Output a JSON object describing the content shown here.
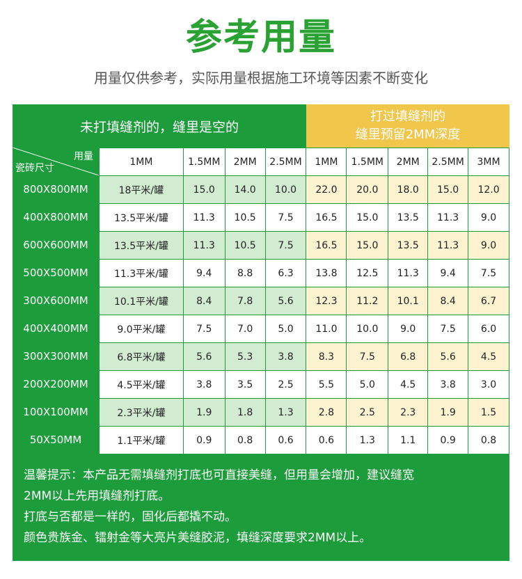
{
  "title": "参考用量",
  "subtitle": "用量仅供参考，实际用量根据施工环境等因素不断变化",
  "header": {
    "left": "未打填缝剂的，缝里是空的",
    "right_line1": "打过填缝剂的",
    "right_line2": "缝里预留2MM深度",
    "corner_top": "用量",
    "corner_bottom": "瓷砖尺寸"
  },
  "columns": [
    "1MM",
    "1.5MM",
    "2MM",
    "2.5MM",
    "1MM",
    "1.5MM",
    "2MM",
    "2.5MM",
    "3MM"
  ],
  "rows": [
    {
      "size": "800X800MM",
      "cover": "18平米/罐",
      "values": [
        "15.0",
        "14.0",
        "10.0",
        "22.0",
        "20.0",
        "18.0",
        "15.0",
        "12.0"
      ]
    },
    {
      "size": "400X800MM",
      "cover": "13.5平米/罐",
      "values": [
        "11.3",
        "10.5",
        "7.5",
        "16.5",
        "15.0",
        "13.5",
        "11.3",
        "9.0"
      ]
    },
    {
      "size": "600X600MM",
      "cover": "13.5平米/罐",
      "values": [
        "11.3",
        "10.5",
        "7.5",
        "16.5",
        "15.0",
        "13.5",
        "11.3",
        "9.0"
      ]
    },
    {
      "size": "500X500MM",
      "cover": "11.3平米/罐",
      "values": [
        "9.4",
        "8.8",
        "6.3",
        "13.8",
        "12.5",
        "11.3",
        "9.4",
        "7.5"
      ]
    },
    {
      "size": "300X600MM",
      "cover": "10.1平米/罐",
      "values": [
        "8.4",
        "7.8",
        "5.6",
        "12.3",
        "11.2",
        "10.1",
        "8.4",
        "6.7"
      ]
    },
    {
      "size": "400X400MM",
      "cover": "9.0平米/罐",
      "values": [
        "7.5",
        "7.0",
        "5.0",
        "11.0",
        "10.0",
        "9.0",
        "7.5",
        "6.0"
      ]
    },
    {
      "size": "300X300MM",
      "cover": "6.8平米/罐",
      "values": [
        "5.6",
        "5.3",
        "3.8",
        "8.3",
        "7.5",
        "6.8",
        "5.6",
        "4.5"
      ]
    },
    {
      "size": "200X200MM",
      "cover": "4.5平米/罐",
      "values": [
        "3.8",
        "3.5",
        "2.5",
        "5.5",
        "5.0",
        "4.5",
        "3.8",
        "3.0"
      ]
    },
    {
      "size": "100X100MM",
      "cover": "2.3平米/罐",
      "values": [
        "1.9",
        "1.8",
        "1.3",
        "2.8",
        "2.5",
        "2.3",
        "1.9",
        "1.5"
      ]
    },
    {
      "size": "50X50MM",
      "cover": "1.1平米/罐",
      "values": [
        "0.9",
        "0.8",
        "0.6",
        "0.6",
        "1.3",
        "1.1",
        "0.9",
        "0.8"
      ]
    }
  ],
  "notes": [
    "温馨提示：本产品无需填缝剂打底也可直接美缝，但用量会增加，建议缝宽",
    "2MM以上先用填缝剂打底。",
    "打底与否都是一样的，固化后都撬不动。",
    "颜色贵族金、镭射金等大亮片美缝胶泥，填缝深度要求2MM以上。"
  ],
  "colors": {
    "green": "#1c9c3b",
    "title_green": "#2aa233",
    "gold": "#f0c64b",
    "light_green": "#d2ecd2",
    "light_yellow": "#fdf3d0"
  }
}
